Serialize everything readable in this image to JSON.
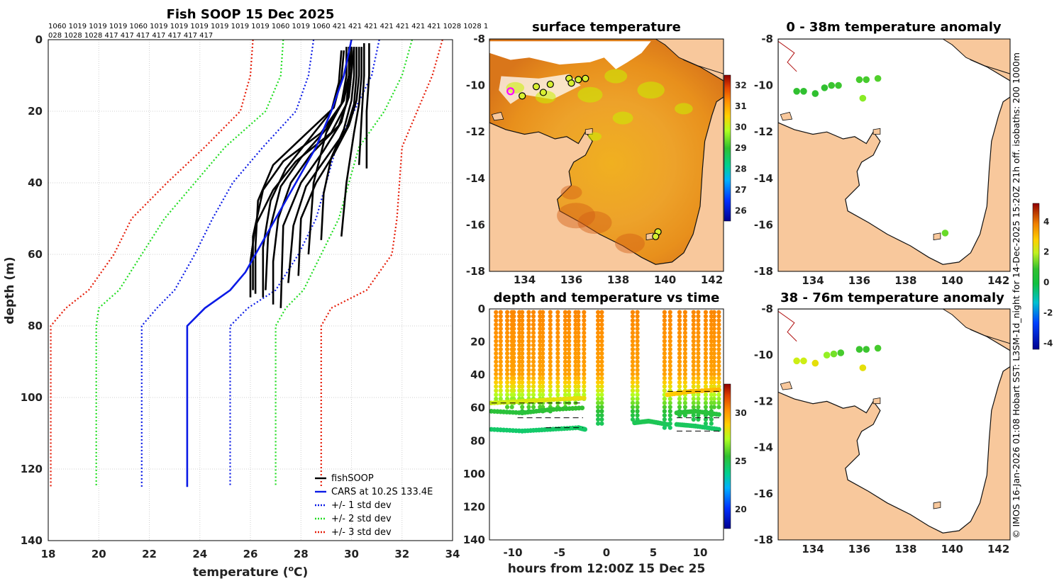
{
  "colors": {
    "land": "#f8c89c",
    "fish": "#000000",
    "cars": "#0a1ae6",
    "sd1": "#0a1ae6",
    "sd2": "#22dd22",
    "sd3": "#e61e0a",
    "grid": "#cfcfcf",
    "marker": "#ff00ff"
  },
  "credit_text": "© IMOS 16-Jan-2026 01:08 Hobart SST: L3SM-1d_night for 14-Dec-2025 15:20Z 21h off. isobaths: 200  1000m",
  "chart_data": [
    {
      "id": "profile",
      "type": "line",
      "title": "Fish SOOP 15 Dec 2025",
      "header_line1": "1060 1019 1019 1019 1060 1019 1019 1019 1019 1019 1019 1060 1019 1060 421 421 421 421 421 421 421 1028 1028 1",
      "header_line2": "028 1028 1028 417 417 417 417 417 417 417",
      "xlabel": "temperature (°C)",
      "xlabel_main": "temperature (",
      "xlabel_sup": "o",
      "xlabel_end": "C)",
      "ylabel": "depth (m)",
      "xlim": [
        18,
        34
      ],
      "ylim": [
        0,
        140
      ],
      "xticks": [
        18,
        20,
        22,
        24,
        26,
        28,
        30,
        32,
        34
      ],
      "yticks": [
        0,
        20,
        40,
        60,
        80,
        100,
        120,
        140
      ],
      "legend": [
        {
          "label": "fishSOOP",
          "style": "solid",
          "color_key": "fish"
        },
        {
          "label": "CARS at 10.2S 133.4E",
          "style": "solid",
          "color_key": "cars"
        },
        {
          "label": "+/- 1 std dev",
          "style": "dotted",
          "color_key": "sd1"
        },
        {
          "label": "+/- 2 std dev",
          "style": "dotted",
          "color_key": "sd2"
        },
        {
          "label": "+/- 3 std dev",
          "style": "dotted",
          "color_key": "sd3"
        }
      ],
      "cars": {
        "depth": [
          0,
          10,
          20,
          30,
          40,
          50,
          60,
          65,
          70,
          75,
          80,
          125
        ],
        "temp": [
          30.0,
          29.7,
          29.2,
          28.6,
          27.8,
          27.0,
          26.2,
          25.8,
          25.2,
          24.2,
          23.5,
          23.5
        ]
      },
      "std_bounds": [
        {
          "name": "-3",
          "temp": [
            33.6,
            33.2,
            32.6,
            32.0,
            31.9,
            31.8,
            31.6,
            30.6,
            29.2,
            28.8,
            28.8
          ],
          "color_key": "sd3"
        },
        {
          "name": "-2",
          "temp": [
            32.4,
            32.0,
            31.3,
            30.3,
            29.9,
            29.5,
            28.8,
            28.1,
            27.4,
            27.0,
            27.0
          ],
          "color_key": "sd2"
        },
        {
          "name": "-1",
          "temp": [
            31.1,
            30.8,
            30.1,
            29.4,
            29.0,
            28.6,
            27.9,
            27.0,
            25.9,
            25.2,
            25.2
          ],
          "color_key": "sd1"
        },
        {
          "name": "+1",
          "temp": [
            28.5,
            28.3,
            27.8,
            26.5,
            25.3,
            24.5,
            23.8,
            23.0,
            22.3,
            21.7,
            21.7
          ],
          "color_key": "sd1"
        },
        {
          "name": "+2",
          "temp": [
            27.3,
            27.2,
            26.6,
            25.0,
            23.8,
            22.6,
            21.7,
            20.8,
            20.0,
            19.9,
            19.9
          ],
          "color_key": "sd2"
        },
        {
          "name": "+3",
          "temp": [
            26.1,
            26.0,
            25.6,
            24.2,
            22.7,
            21.3,
            20.6,
            19.6,
            18.7,
            18.1,
            18.1
          ],
          "color_key": "sd3"
        }
      ],
      "std_depths": [
        0,
        10,
        20,
        30,
        40,
        50,
        60,
        70,
        75,
        80,
        125
      ],
      "fish_profiles": [
        {
          "temp": [
            29.9,
            29.9,
            29.8,
            29.2,
            27.8,
            26.9,
            26.2,
            26.0,
            26.0
          ],
          "depth": [
            2,
            10,
            18,
            26,
            34,
            42,
            52,
            62,
            72
          ]
        },
        {
          "temp": [
            30.1,
            30.0,
            29.9,
            29.5,
            28.4,
            27.6,
            27.1,
            26.9,
            26.9
          ],
          "depth": [
            2,
            9,
            16,
            24,
            32,
            40,
            50,
            62,
            74
          ]
        },
        {
          "temp": [
            29.8,
            29.8,
            29.6,
            28.8,
            27.3,
            26.5,
            26.1,
            26.1
          ],
          "depth": [
            2,
            10,
            18,
            26,
            34,
            42,
            55,
            70
          ]
        },
        {
          "temp": [
            30.2,
            30.2,
            30.1,
            29.8,
            29.0,
            28.2,
            27.7,
            27.5
          ],
          "depth": [
            2,
            10,
            18,
            25,
            33,
            41,
            52,
            68
          ]
        },
        {
          "temp": [
            29.7,
            29.6,
            29.3,
            28.1,
            26.9,
            26.3,
            26.2,
            26.2
          ],
          "depth": [
            3,
            11,
            19,
            27,
            35,
            45,
            58,
            71
          ]
        },
        {
          "temp": [
            30.0,
            30.0,
            29.9,
            29.6,
            28.9,
            28.0,
            27.3,
            27.2
          ],
          "depth": [
            2,
            8,
            15,
            23,
            31,
            40,
            52,
            75
          ]
        },
        {
          "temp": [
            29.9,
            29.9,
            29.7,
            29.0,
            28.0,
            27.2,
            26.7,
            26.6
          ],
          "depth": [
            2,
            10,
            17,
            25,
            33,
            41,
            55,
            70
          ]
        },
        {
          "temp": [
            30.3,
            30.3,
            30.2,
            29.9,
            29.3,
            28.6,
            28.0,
            27.9
          ],
          "depth": [
            2,
            10,
            17,
            24,
            32,
            40,
            50,
            66
          ]
        },
        {
          "temp": [
            29.6,
            29.5,
            29.2,
            28.3,
            27.4,
            26.8,
            26.5,
            26.5
          ],
          "depth": [
            3,
            12,
            20,
            28,
            36,
            45,
            58,
            72
          ]
        },
        {
          "temp": [
            30.1,
            30.1,
            30.0,
            29.7,
            29.2,
            28.9,
            28.8
          ],
          "depth": [
            2,
            10,
            17,
            25,
            33,
            43,
            56
          ]
        },
        {
          "temp": [
            30.5,
            30.5,
            30.4,
            30.3
          ],
          "depth": [
            1,
            10,
            22,
            35
          ]
        },
        {
          "temp": [
            30.7,
            30.7,
            30.6,
            30.6
          ],
          "depth": [
            1,
            10,
            20,
            36
          ]
        },
        {
          "temp": [
            30.0,
            29.9,
            29.6,
            29.0,
            28.5,
            28.3
          ],
          "depth": [
            2,
            10,
            18,
            26,
            40,
            60
          ]
        },
        {
          "temp": [
            30.4,
            30.4,
            30.3,
            30.1,
            29.8,
            29.6
          ],
          "depth": [
            2,
            10,
            18,
            26,
            40,
            55
          ]
        }
      ]
    },
    {
      "id": "surface",
      "type": "heatmap",
      "title": "surface temperature",
      "xlim": [
        132.5,
        142.5
      ],
      "ylim": [
        -18,
        -8
      ],
      "xticks": [
        134,
        136,
        138,
        140,
        142
      ],
      "yticks": [
        -8,
        -10,
        -12,
        -14,
        -16,
        -18
      ],
      "colorbar": {
        "min": 25.5,
        "max": 32.5,
        "ticks": [
          26,
          27,
          28,
          29,
          30,
          31,
          32
        ]
      },
      "stations": [
        {
          "lon": 133.9,
          "lat": -10.45
        },
        {
          "lon": 134.5,
          "lat": -10.05
        },
        {
          "lon": 134.8,
          "lat": -10.3
        },
        {
          "lon": 135.1,
          "lat": -9.95
        },
        {
          "lon": 135.9,
          "lat": -9.7
        },
        {
          "lon": 136.0,
          "lat": -9.9
        },
        {
          "lon": 136.3,
          "lat": -9.75
        },
        {
          "lon": 136.6,
          "lat": -9.7
        },
        {
          "lon": 139.7,
          "lat": -16.3
        },
        {
          "lon": 139.6,
          "lat": -16.5
        }
      ],
      "marker": {
        "lon": 133.4,
        "lat": -10.25
      }
    },
    {
      "id": "timeseries",
      "type": "scatter",
      "title": "depth and temperature vs time",
      "xlabel": "hours from 12:00Z 15 Dec 25",
      "xlim": [
        -12.5,
        12.5
      ],
      "ylim": [
        0,
        140
      ],
      "xticks": [
        -10,
        -5,
        0,
        5,
        10
      ],
      "yticks": [
        0,
        20,
        40,
        60,
        80,
        100,
        120,
        140
      ],
      "colorbar": {
        "min": 18,
        "max": 33,
        "ticks": [
          20,
          25,
          30
        ]
      },
      "casts": [
        {
          "t0": -11.8,
          "t1": -11.3,
          "bottom": 56
        },
        {
          "t0": -10.6,
          "t1": -10.1,
          "bottom": 60
        },
        {
          "t0": -9.9,
          "t1": -9.3,
          "bottom": 58
        },
        {
          "t0": -9.0,
          "t1": -8.3,
          "bottom": 62
        },
        {
          "t0": -7.8,
          "t1": -7.1,
          "bottom": 60
        },
        {
          "t0": -6.8,
          "t1": -6.0,
          "bottom": 63
        },
        {
          "t0": -5.2,
          "t1": -4.4,
          "bottom": 60
        },
        {
          "t0": -4.0,
          "t1": -3.3,
          "bottom": 58
        },
        {
          "t0": -3.0,
          "t1": -2.4,
          "bottom": 55
        },
        {
          "t0": -0.9,
          "t1": -0.5,
          "bottom": 70
        },
        {
          "t0": 2.8,
          "t1": 3.3,
          "bottom": 68
        },
        {
          "t0": 6.2,
          "t1": 6.8,
          "bottom": 72
        },
        {
          "t0": 7.8,
          "t1": 8.4,
          "bottom": 65
        },
        {
          "t0": 9.3,
          "t1": 9.8,
          "bottom": 68
        },
        {
          "t0": 10.6,
          "t1": 11.2,
          "bottom": 70
        },
        {
          "t0": 11.5,
          "t1": 12.0,
          "bottom": 60
        }
      ],
      "bottom_tracks": [
        {
          "t": [
            -12.3,
            -9,
            -6,
            -3,
            -2.3
          ],
          "d": [
            73,
            74,
            73,
            72,
            73
          ]
        },
        {
          "t": [
            -12.3,
            -9,
            -6,
            -2.4
          ],
          "d": [
            57,
            56,
            55,
            54
          ]
        },
        {
          "t": [
            -12.3,
            -9,
            -6,
            -2.6
          ],
          "d": [
            62,
            63,
            61,
            60
          ]
        },
        {
          "t": [
            3.0,
            4.5,
            6.5
          ],
          "d": [
            69,
            68,
            70
          ]
        },
        {
          "t": [
            6.5,
            9,
            12
          ],
          "d": [
            52,
            50,
            49
          ]
        },
        {
          "t": [
            7.5,
            9.5,
            12
          ],
          "d": [
            70,
            71,
            73
          ]
        },
        {
          "t": [
            7.5,
            9.5,
            12
          ],
          "d": [
            63,
            62,
            64
          ]
        }
      ],
      "dashes": [
        {
          "t0": -12.3,
          "t1": -2.5,
          "d": 57
        },
        {
          "t0": -9.5,
          "t1": -2.5,
          "d": 66
        },
        {
          "t0": -6.5,
          "t1": -2.5,
          "d": 72
        },
        {
          "t0": 6.5,
          "t1": 12.2,
          "d": 50
        },
        {
          "t0": 7.5,
          "t1": 12.2,
          "d": 66
        },
        {
          "t0": 7.5,
          "t1": 12.2,
          "d": 74
        }
      ]
    },
    {
      "id": "anom_0_38",
      "type": "scatter",
      "title": "0 - 38m temperature anomaly",
      "xlim": [
        132.5,
        142.5
      ],
      "ylim": [
        -18,
        -8
      ],
      "xticks": [
        134,
        136,
        138,
        140,
        142
      ],
      "yticks": [
        -8,
        -10,
        -12,
        -14,
        -16,
        -18
      ],
      "points": [
        {
          "lon": 133.3,
          "lat": -10.25,
          "v": 0.4
        },
        {
          "lon": 133.6,
          "lat": -10.25,
          "v": 0.4
        },
        {
          "lon": 134.1,
          "lat": -10.35,
          "v": 0.4
        },
        {
          "lon": 134.5,
          "lat": -10.1,
          "v": 0.4
        },
        {
          "lon": 134.8,
          "lat": -10.0,
          "v": 0.5
        },
        {
          "lon": 135.1,
          "lat": -10.0,
          "v": 0.5
        },
        {
          "lon": 136.0,
          "lat": -9.75,
          "v": 0.6
        },
        {
          "lon": 136.3,
          "lat": -9.75,
          "v": 0.6
        },
        {
          "lon": 136.8,
          "lat": -9.7,
          "v": 0.7
        },
        {
          "lon": 136.15,
          "lat": -10.55,
          "v": 1.2
        },
        {
          "lon": 139.7,
          "lat": -16.35,
          "v": 0.9
        }
      ]
    },
    {
      "id": "anom_38_76",
      "type": "scatter",
      "title": "38 - 76m temperature anomaly",
      "xlim": [
        132.5,
        142.5
      ],
      "ylim": [
        -18,
        -8
      ],
      "xticks": [
        134,
        136,
        138,
        140,
        142
      ],
      "yticks": [
        -8,
        -10,
        -12,
        -14,
        -16,
        -18
      ],
      "points": [
        {
          "lon": 133.3,
          "lat": -10.25,
          "v": 1.9
        },
        {
          "lon": 133.6,
          "lat": -10.25,
          "v": 1.9
        },
        {
          "lon": 134.1,
          "lat": -10.35,
          "v": 2.2
        },
        {
          "lon": 134.6,
          "lat": -10.0,
          "v": 1.3
        },
        {
          "lon": 134.9,
          "lat": -9.95,
          "v": 1.0
        },
        {
          "lon": 135.2,
          "lat": -9.9,
          "v": 0.6
        },
        {
          "lon": 136.0,
          "lat": -9.75,
          "v": 0.5
        },
        {
          "lon": 136.3,
          "lat": -9.75,
          "v": 0.5
        },
        {
          "lon": 136.8,
          "lat": -9.7,
          "v": 0.6
        },
        {
          "lon": 136.15,
          "lat": -10.55,
          "v": 2.2
        }
      ],
      "colorbar": {
        "min": -4.4,
        "max": 5.2,
        "ticks": [
          -4,
          -2,
          0,
          2,
          4
        ]
      }
    }
  ]
}
